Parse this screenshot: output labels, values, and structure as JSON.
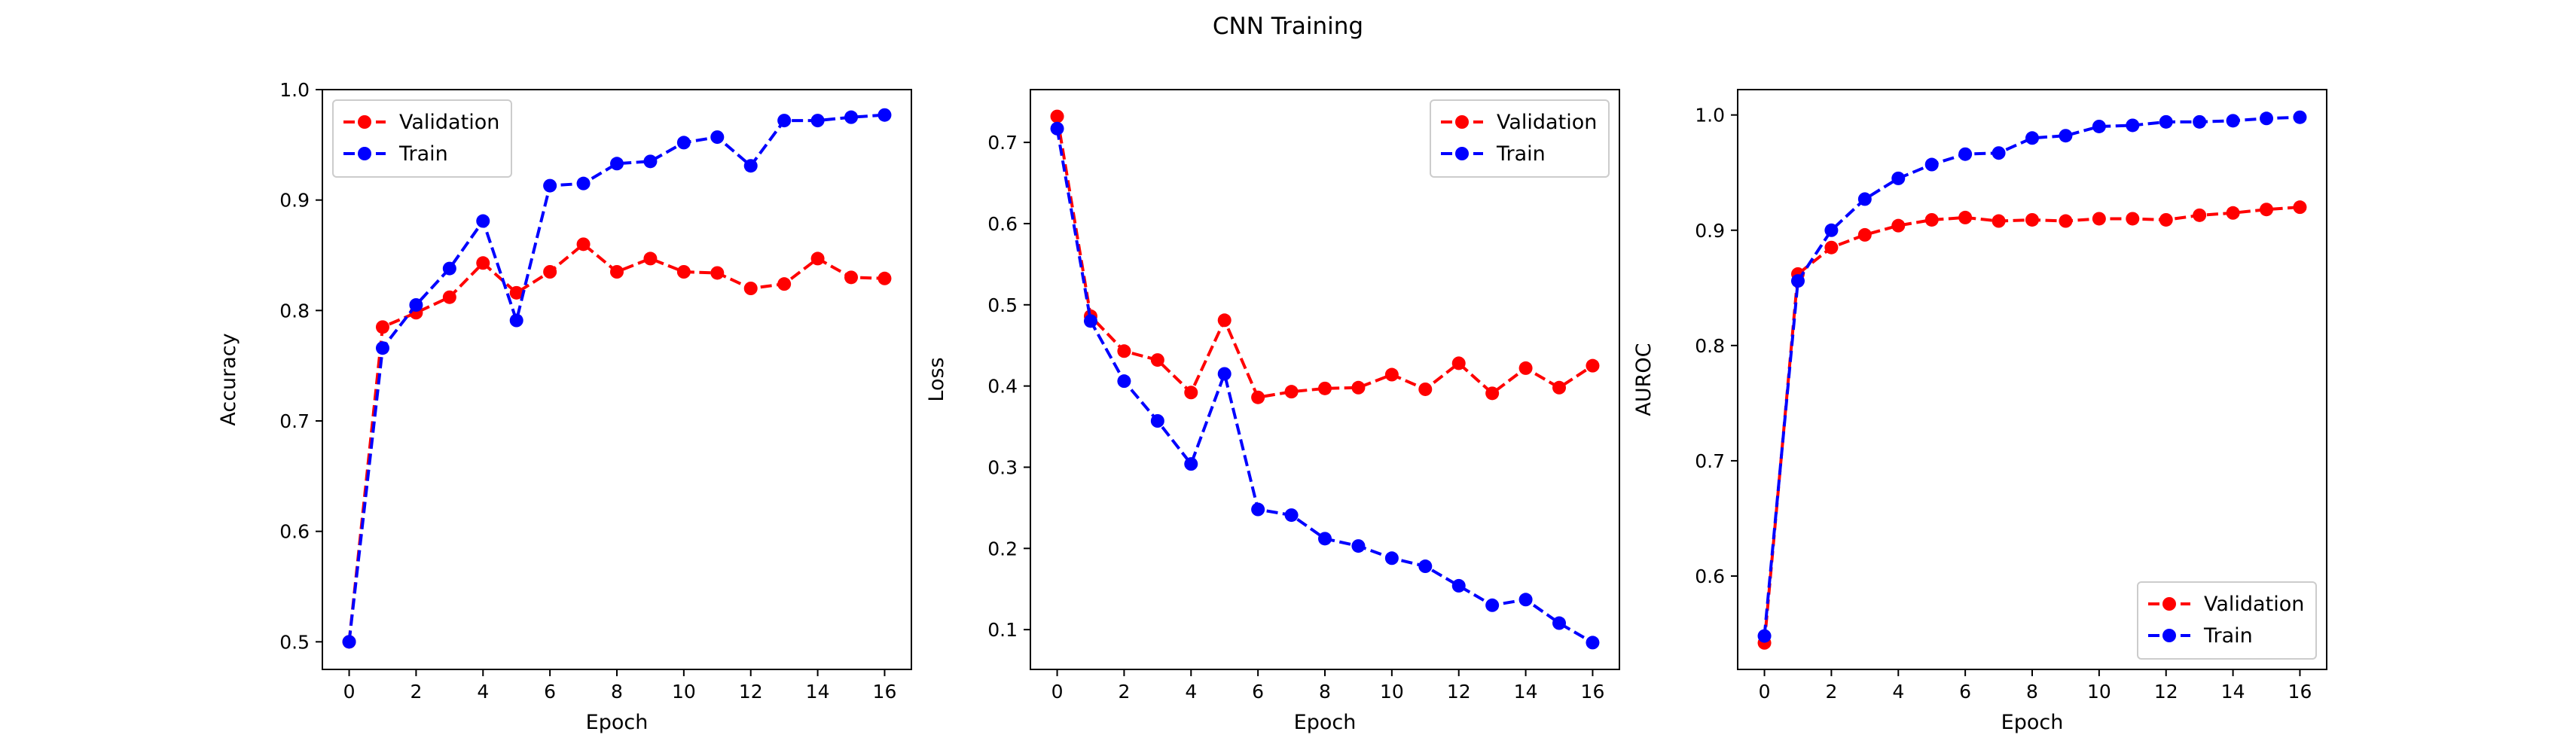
{
  "figure_title": "CNN Training",
  "chart_data": [
    {
      "type": "line",
      "title": "",
      "xlabel": "Epoch",
      "ylabel": "Accuracy",
      "xlim": [
        -0.8,
        16.8
      ],
      "ylim": [
        0.475,
        1.0
      ],
      "xticks": [
        0,
        2,
        4,
        6,
        8,
        10,
        12,
        14,
        16
      ],
      "yticks": [
        0.5,
        0.6,
        0.7,
        0.8,
        0.9,
        1.0
      ],
      "ytick_labels": [
        "0.5",
        "0.6",
        "0.7",
        "0.8",
        "0.9",
        "1.0"
      ],
      "grid": false,
      "legend_position": "upper-left",
      "x": [
        0,
        1,
        2,
        3,
        4,
        5,
        6,
        7,
        8,
        9,
        10,
        11,
        12,
        13,
        14,
        15,
        16
      ],
      "series": [
        {
          "name": "Validation",
          "color": "#ff0000",
          "line_style": "dashed",
          "marker": "circle",
          "values": [
            0.5,
            0.785,
            0.798,
            0.812,
            0.843,
            0.816,
            0.835,
            0.86,
            0.835,
            0.847,
            0.835,
            0.834,
            0.82,
            0.824,
            0.847,
            0.83,
            0.829
          ]
        },
        {
          "name": "Train",
          "color": "#0000ff",
          "line_style": "dashed",
          "marker": "circle",
          "values": [
            0.5,
            0.766,
            0.805,
            0.838,
            0.881,
            0.791,
            0.913,
            0.915,
            0.933,
            0.935,
            0.952,
            0.957,
            0.931,
            0.972,
            0.972,
            0.975,
            0.977
          ]
        }
      ]
    },
    {
      "type": "line",
      "title": "",
      "xlabel": "Epoch",
      "ylabel": "Loss",
      "xlim": [
        -0.8,
        16.8
      ],
      "ylim": [
        0.051,
        0.765
      ],
      "xticks": [
        0,
        2,
        4,
        6,
        8,
        10,
        12,
        14,
        16
      ],
      "yticks": [
        0.1,
        0.2,
        0.3,
        0.4,
        0.5,
        0.6,
        0.7
      ],
      "ytick_labels": [
        "0.1",
        "0.2",
        "0.3",
        "0.4",
        "0.5",
        "0.6",
        "0.7"
      ],
      "grid": false,
      "legend_position": "upper-right",
      "x": [
        0,
        1,
        2,
        3,
        4,
        5,
        6,
        7,
        8,
        9,
        10,
        11,
        12,
        13,
        14,
        15,
        16
      ],
      "series": [
        {
          "name": "Validation",
          "color": "#ff0000",
          "line_style": "dashed",
          "marker": "circle",
          "values": [
            0.732,
            0.486,
            0.443,
            0.432,
            0.392,
            0.481,
            0.386,
            0.393,
            0.397,
            0.398,
            0.414,
            0.396,
            0.428,
            0.391,
            0.422,
            0.398,
            0.425
          ]
        },
        {
          "name": "Train",
          "color": "#0000ff",
          "line_style": "dashed",
          "marker": "circle",
          "values": [
            0.717,
            0.48,
            0.406,
            0.357,
            0.304,
            0.415,
            0.248,
            0.241,
            0.212,
            0.203,
            0.188,
            0.178,
            0.154,
            0.13,
            0.137,
            0.108,
            0.084
          ]
        }
      ]
    },
    {
      "type": "line",
      "title": "",
      "xlabel": "Epoch",
      "ylabel": "AUROC",
      "xlim": [
        -0.8,
        16.8
      ],
      "ylim": [
        0.519,
        1.022
      ],
      "xticks": [
        0,
        2,
        4,
        6,
        8,
        10,
        12,
        14,
        16
      ],
      "yticks": [
        0.6,
        0.7,
        0.8,
        0.9,
        1.0
      ],
      "ytick_labels": [
        "0.6",
        "0.7",
        "0.8",
        "0.9",
        "1.0"
      ],
      "grid": false,
      "legend_position": "lower-right",
      "x": [
        0,
        1,
        2,
        3,
        4,
        5,
        6,
        7,
        8,
        9,
        10,
        11,
        12,
        13,
        14,
        15,
        16
      ],
      "series": [
        {
          "name": "Validation",
          "color": "#ff0000",
          "line_style": "dashed",
          "marker": "circle",
          "values": [
            0.542,
            0.862,
            0.885,
            0.896,
            0.904,
            0.909,
            0.911,
            0.908,
            0.909,
            0.908,
            0.91,
            0.91,
            0.909,
            0.913,
            0.915,
            0.918,
            0.92
          ]
        },
        {
          "name": "Train",
          "color": "#0000ff",
          "line_style": "dashed",
          "marker": "circle",
          "values": [
            0.548,
            0.856,
            0.9,
            0.927,
            0.945,
            0.957,
            0.966,
            0.967,
            0.98,
            0.982,
            0.99,
            0.991,
            0.994,
            0.994,
            0.995,
            0.997,
            0.998
          ]
        }
      ]
    }
  ]
}
